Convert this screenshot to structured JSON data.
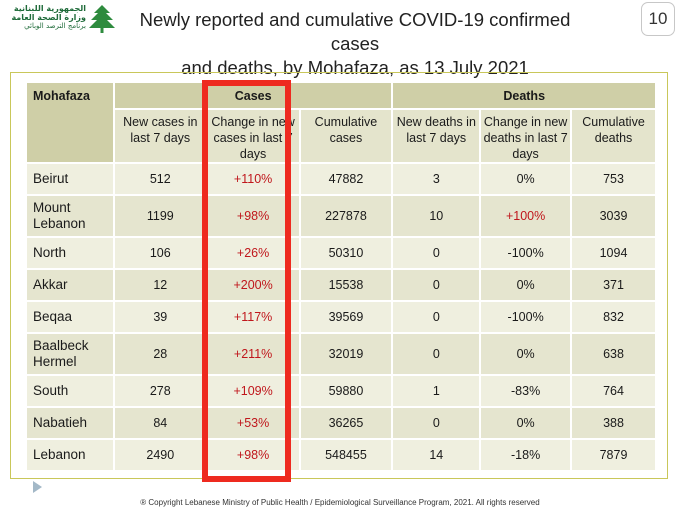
{
  "header": {
    "logo_lines": [
      "الجمهورية اللبنانية",
      "وزارة الصحة العامة",
      "برنامج الترصد الوبائي"
    ],
    "title_line1": "Newly reported and cumulative COVID-19 confirmed cases",
    "title_line2": "and deaths, by Mohafaza,  as 13 July 2021",
    "page_number": "10"
  },
  "table": {
    "col_mohafaza": "Mohafaza",
    "group_cases": "Cases",
    "group_deaths": "Deaths",
    "col_new_cases": "New cases in last 7 days",
    "col_change_cases": "Change in new cases in last 7 days",
    "col_cum_cases": "Cumulative cases",
    "col_new_deaths": "New deaths in last 7 days",
    "col_change_deaths": "Change in new deaths in last 7 days",
    "col_cum_deaths": "Cumulative deaths",
    "rows": [
      {
        "name": "Beirut",
        "new_cases": "512",
        "change_cases": "+110%",
        "cum_cases": "47882",
        "new_deaths": "3",
        "change_deaths": "0%",
        "cum_deaths": "753"
      },
      {
        "name": "Mount Lebanon",
        "new_cases": "1199",
        "change_cases": "+98%",
        "cum_cases": "227878",
        "new_deaths": "10",
        "change_deaths": "+100%",
        "cum_deaths": "3039"
      },
      {
        "name": "North",
        "new_cases": "106",
        "change_cases": "+26%",
        "cum_cases": "50310",
        "new_deaths": "0",
        "change_deaths": "-100%",
        "cum_deaths": "1094"
      },
      {
        "name": "Akkar",
        "new_cases": "12",
        "change_cases": "+200%",
        "cum_cases": "15538",
        "new_deaths": "0",
        "change_deaths": "0%",
        "cum_deaths": "371"
      },
      {
        "name": "Beqaa",
        "new_cases": "39",
        "change_cases": "+117%",
        "cum_cases": "39569",
        "new_deaths": "0",
        "change_deaths": "-100%",
        "cum_deaths": "832"
      },
      {
        "name": "Baalbeck Hermel",
        "new_cases": "28",
        "change_cases": "+211%",
        "cum_cases": "32019",
        "new_deaths": "0",
        "change_deaths": "0%",
        "cum_deaths": "638"
      },
      {
        "name": "South",
        "new_cases": "278",
        "change_cases": "+109%",
        "cum_cases": "59880",
        "new_deaths": "1",
        "change_deaths": "-83%",
        "cum_deaths": "764"
      },
      {
        "name": "Nabatieh",
        "new_cases": "84",
        "change_cases": "+53%",
        "cum_cases": "36265",
        "new_deaths": "0",
        "change_deaths": "0%",
        "cum_deaths": "388"
      },
      {
        "name": "Lebanon",
        "new_cases": "2490",
        "change_cases": "+98%",
        "cum_cases": "548455",
        "new_deaths": "14",
        "change_deaths": "-18%",
        "cum_deaths": "7879"
      }
    ]
  },
  "footer": {
    "copyright": "® Copyright Lebanese Ministry of Public Health / Epidemiological Surveillance Program, 2021. All rights reserved"
  },
  "colors": {
    "highlight_border": "#ee2a1f",
    "positive_change_text": "#c0171c",
    "header_band": "#cfcfa7",
    "row_light": "#efefdf",
    "row_dark": "#e5e5cf",
    "frame_border": "#c9c75a",
    "logo_green": "#1f6b3a"
  }
}
